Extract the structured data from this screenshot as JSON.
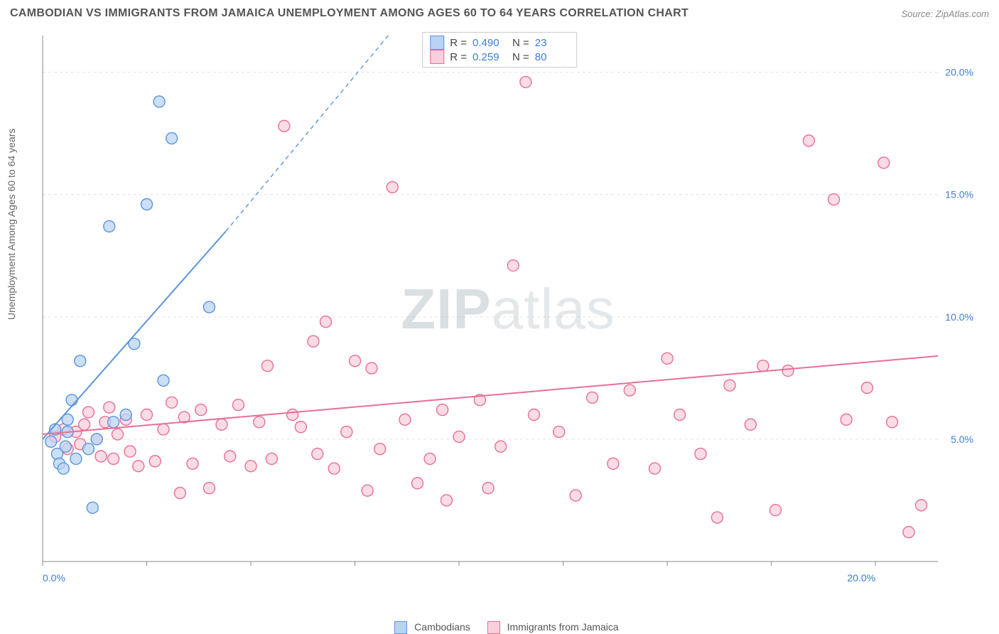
{
  "header": {
    "title": "CAMBODIAN VS IMMIGRANTS FROM JAMAICA UNEMPLOYMENT AMONG AGES 60 TO 64 YEARS CORRELATION CHART",
    "source": "Source: ZipAtlas.com"
  },
  "watermark": {
    "bold": "ZIP",
    "light": "atlas"
  },
  "chart": {
    "type": "scatter",
    "ylabel": "Unemployment Among Ages 60 to 64 years",
    "xlim": [
      0,
      21.5
    ],
    "ylim": [
      0,
      21.5
    ],
    "xticks_major": [
      0.0,
      10.0,
      20.0
    ],
    "ytick_major": [
      5.0,
      10.0,
      15.0,
      20.0
    ],
    "ytick_labels": [
      "5.0%",
      "10.0%",
      "15.0%",
      "20.0%"
    ],
    "xtick_labels": [
      "0.0%",
      "20.0%"
    ],
    "xtick_label_color": "#3b7dd8",
    "ytick_label_color": "#3b7dd8",
    "tick_fontsize": 14,
    "axis_color": "#888888",
    "grid_color": "#e3e3e3",
    "grid_dash": "4,4",
    "background_color": "#ffffff",
    "marker_radius": 8,
    "marker_stroke_width": 1.4,
    "line_solid_width": 2,
    "line_dash_width": 1.4,
    "series": [
      {
        "name": "Cambodians",
        "label": "Cambodians",
        "fill": "#b9d4f3",
        "stroke": "#5a95db",
        "R": "0.490",
        "N": "23",
        "line": {
          "x1": 0.0,
          "y1": 5.0,
          "x2_solid": 4.4,
          "y2_solid": 13.5,
          "x2_dash": 8.3,
          "y2_dash": 21.5
        },
        "points": [
          [
            0.2,
            4.9
          ],
          [
            0.3,
            5.4
          ],
          [
            0.35,
            4.4
          ],
          [
            0.4,
            4.0
          ],
          [
            0.5,
            3.8
          ],
          [
            0.55,
            4.7
          ],
          [
            0.6,
            5.3
          ],
          [
            0.6,
            5.8
          ],
          [
            0.7,
            6.6
          ],
          [
            0.8,
            4.2
          ],
          [
            0.9,
            8.2
          ],
          [
            1.1,
            4.6
          ],
          [
            1.2,
            2.2
          ],
          [
            1.3,
            5.0
          ],
          [
            1.6,
            13.7
          ],
          [
            1.7,
            5.7
          ],
          [
            2.0,
            6.0
          ],
          [
            2.2,
            8.9
          ],
          [
            2.5,
            14.6
          ],
          [
            2.8,
            18.8
          ],
          [
            2.9,
            7.4
          ],
          [
            3.1,
            17.3
          ],
          [
            4.0,
            10.4
          ]
        ]
      },
      {
        "name": "Immigrants from Jamaica",
        "label": "Immigrants from Jamaica",
        "fill": "#f8d0db",
        "stroke": "#e96f94",
        "R": "0.259",
        "N": "80",
        "line": {
          "x1": 0.0,
          "y1": 5.2,
          "x2_solid": 21.5,
          "y2_solid": 8.4,
          "x2_dash": 21.5,
          "y2_dash": 8.4
        },
        "points": [
          [
            0.3,
            5.1
          ],
          [
            0.5,
            5.4
          ],
          [
            0.6,
            4.6
          ],
          [
            0.8,
            5.3
          ],
          [
            0.9,
            4.8
          ],
          [
            1.0,
            5.6
          ],
          [
            1.1,
            6.1
          ],
          [
            1.3,
            5.0
          ],
          [
            1.4,
            4.3
          ],
          [
            1.5,
            5.7
          ],
          [
            1.6,
            6.3
          ],
          [
            1.7,
            4.2
          ],
          [
            1.8,
            5.2
          ],
          [
            2.0,
            5.8
          ],
          [
            2.1,
            4.5
          ],
          [
            2.3,
            3.9
          ],
          [
            2.5,
            6.0
          ],
          [
            2.7,
            4.1
          ],
          [
            2.9,
            5.4
          ],
          [
            3.1,
            6.5
          ],
          [
            3.3,
            2.8
          ],
          [
            3.4,
            5.9
          ],
          [
            3.6,
            4.0
          ],
          [
            3.8,
            6.2
          ],
          [
            4.0,
            3.0
          ],
          [
            4.3,
            5.6
          ],
          [
            4.5,
            4.3
          ],
          [
            4.7,
            6.4
          ],
          [
            5.0,
            3.9
          ],
          [
            5.2,
            5.7
          ],
          [
            5.4,
            8.0
          ],
          [
            5.5,
            4.2
          ],
          [
            5.8,
            17.8
          ],
          [
            6.0,
            6.0
          ],
          [
            6.2,
            5.5
          ],
          [
            6.5,
            9.0
          ],
          [
            6.6,
            4.4
          ],
          [
            6.8,
            9.8
          ],
          [
            7.0,
            3.8
          ],
          [
            7.3,
            5.3
          ],
          [
            7.5,
            8.2
          ],
          [
            7.8,
            2.9
          ],
          [
            7.9,
            7.9
          ],
          [
            8.1,
            4.6
          ],
          [
            8.4,
            15.3
          ],
          [
            8.7,
            5.8
          ],
          [
            9.0,
            3.2
          ],
          [
            9.3,
            4.2
          ],
          [
            9.6,
            6.2
          ],
          [
            9.7,
            2.5
          ],
          [
            10.0,
            5.1
          ],
          [
            10.5,
            6.6
          ],
          [
            10.7,
            3.0
          ],
          [
            11.0,
            4.7
          ],
          [
            11.3,
            12.1
          ],
          [
            11.6,
            19.6
          ],
          [
            11.8,
            6.0
          ],
          [
            12.4,
            5.3
          ],
          [
            12.8,
            2.7
          ],
          [
            13.2,
            6.7
          ],
          [
            13.7,
            4.0
          ],
          [
            14.1,
            7.0
          ],
          [
            14.7,
            3.8
          ],
          [
            15.0,
            8.3
          ],
          [
            15.3,
            6.0
          ],
          [
            15.8,
            4.4
          ],
          [
            16.2,
            1.8
          ],
          [
            16.5,
            7.2
          ],
          [
            17.0,
            5.6
          ],
          [
            17.3,
            8.0
          ],
          [
            17.6,
            2.1
          ],
          [
            17.9,
            7.8
          ],
          [
            18.4,
            17.2
          ],
          [
            19.0,
            14.8
          ],
          [
            19.3,
            5.8
          ],
          [
            19.8,
            7.1
          ],
          [
            20.2,
            16.3
          ],
          [
            20.4,
            5.7
          ],
          [
            20.8,
            1.2
          ],
          [
            21.1,
            2.3
          ]
        ]
      }
    ]
  },
  "bottom_legend": {
    "items": [
      {
        "label": "Cambodians",
        "fill": "#b9d4f3",
        "stroke": "#5a95db"
      },
      {
        "label": "Immigrants from Jamaica",
        "fill": "#f8d0db",
        "stroke": "#e96f94"
      }
    ]
  }
}
